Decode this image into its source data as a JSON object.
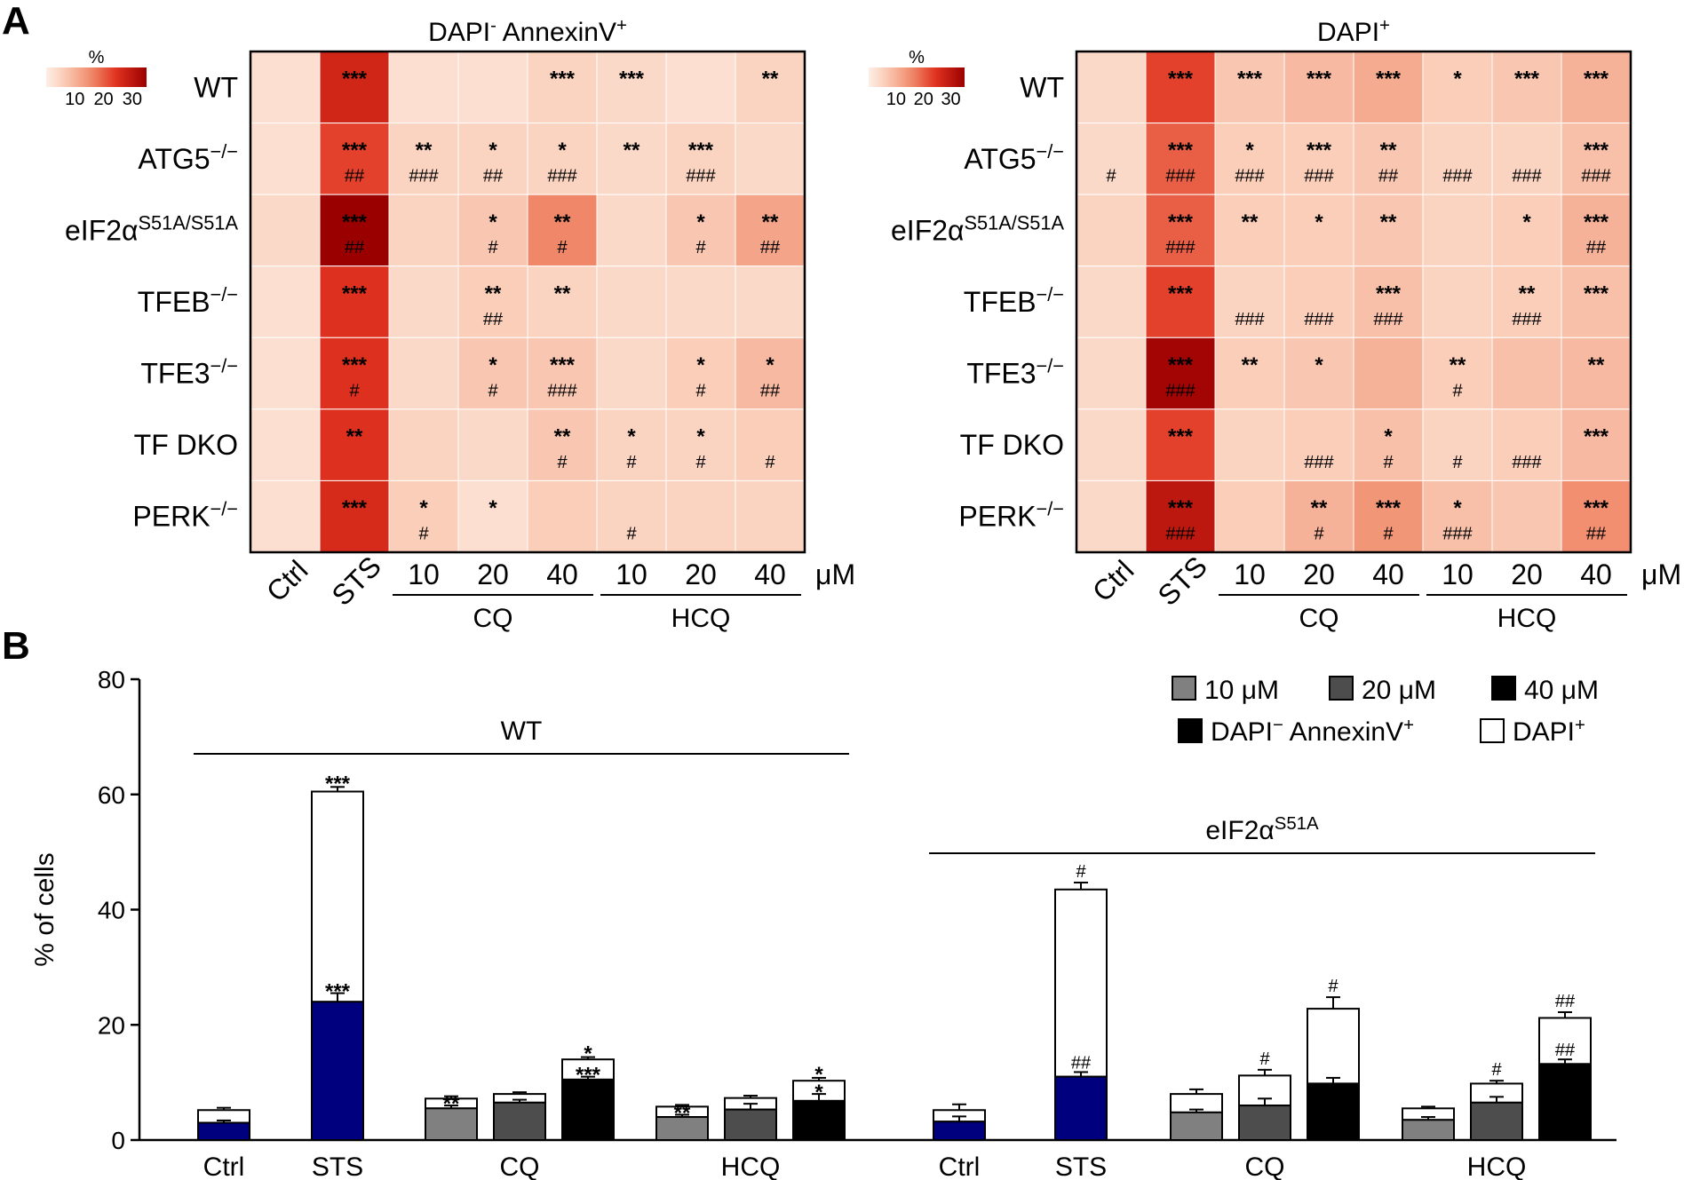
{
  "panel_labels": {
    "a": "A",
    "b": "B"
  },
  "colors": {
    "heat_low": "#fde8de",
    "heat_high": "#9b0000",
    "ctrl_bar": "#00007f",
    "dose_10": "#808080",
    "dose_20": "#4d4d4d",
    "dose_40": "#000000"
  },
  "chart_data": [
    {
      "type": "heatmap",
      "id": "annexin",
      "title_main": "DAPI",
      "title_sup1": "-",
      "title_rest": " AnnexinV",
      "title_sup2": "+",
      "colorbar": {
        "title": "%",
        "ticks": [
          "10",
          "20",
          "30"
        ],
        "range": [
          0,
          35
        ]
      },
      "rows": [
        {
          "main": "WT",
          "sup": ""
        },
        {
          "main": "ATG5",
          "sup": "−/−"
        },
        {
          "main": "eIF2α",
          "sup": "S51A/S51A"
        },
        {
          "main": "TFEB",
          "sup": "−/−"
        },
        {
          "main": "TFE3",
          "sup": "−/−"
        },
        {
          "main": "TF DKO",
          "sup": ""
        },
        {
          "main": "PERK",
          "sup": "−/−"
        }
      ],
      "columns": [
        "Ctrl",
        "STS",
        "10",
        "20",
        "40",
        "10",
        "20",
        "40"
      ],
      "groups": [
        {
          "label": "CQ",
          "from": 2,
          "to": 4
        },
        {
          "label": "HCQ",
          "from": 5,
          "to": 7
        }
      ],
      "unit": "μM",
      "values": [
        [
          3,
          27,
          3,
          3,
          5,
          4,
          3,
          5
        ],
        [
          3,
          23,
          5,
          5,
          5,
          4,
          5,
          4
        ],
        [
          4,
          35,
          5,
          7,
          16,
          4,
          7,
          12
        ],
        [
          3,
          25,
          4,
          6,
          5,
          4,
          4,
          4
        ],
        [
          3,
          25,
          4,
          7,
          7,
          4,
          6,
          9
        ],
        [
          3,
          25,
          5,
          4,
          7,
          5,
          5,
          6
        ],
        [
          3,
          26,
          6,
          3,
          6,
          5,
          5,
          5
        ]
      ],
      "stars": [
        [
          "",
          "***",
          "",
          "",
          "***",
          "***",
          "",
          "**"
        ],
        [
          "",
          "***",
          "**",
          "*",
          "*",
          "**",
          "***",
          ""
        ],
        [
          "",
          "***",
          "",
          "*",
          "**",
          "",
          "*",
          "**"
        ],
        [
          "",
          "***",
          "",
          "**",
          "**",
          "",
          "",
          ""
        ],
        [
          "",
          "***",
          "",
          "*",
          "***",
          "",
          "*",
          "*"
        ],
        [
          "",
          "**",
          "",
          "",
          "**",
          "*",
          "*",
          ""
        ],
        [
          "",
          "***",
          "*",
          "*",
          "",
          "",
          "",
          ""
        ]
      ],
      "hashes": [
        [
          "",
          "",
          "",
          "",
          "",
          "",
          "",
          ""
        ],
        [
          "",
          "##",
          "###",
          "##",
          "###",
          "",
          "###",
          ""
        ],
        [
          "",
          "##",
          "",
          "#",
          "#",
          "",
          "#",
          "##"
        ],
        [
          "",
          "",
          "",
          "##",
          "",
          "",
          "",
          ""
        ],
        [
          "",
          "#",
          "",
          "#",
          "###",
          "",
          "#",
          "##"
        ],
        [
          "",
          "",
          "",
          "",
          "#",
          "#",
          "#",
          "#"
        ],
        [
          "",
          "",
          "#",
          "",
          "",
          "#",
          "",
          ""
        ]
      ]
    },
    {
      "type": "heatmap",
      "id": "dapi",
      "title_main": "DAPI",
      "title_sup1": "",
      "title_rest": "",
      "title_sup2": "+",
      "colorbar": {
        "title": "%",
        "ticks": [
          "10",
          "20",
          "30"
        ],
        "range": [
          0,
          35
        ]
      },
      "rows": [
        {
          "main": "WT",
          "sup": ""
        },
        {
          "main": "ATG5",
          "sup": "−/−"
        },
        {
          "main": "eIF2α",
          "sup": "S51A/S51A"
        },
        {
          "main": "TFEB",
          "sup": "−/−"
        },
        {
          "main": "TFE3",
          "sup": "−/−"
        },
        {
          "main": "TF DKO",
          "sup": ""
        },
        {
          "main": "PERK",
          "sup": "−/−"
        }
      ],
      "columns": [
        "Ctrl",
        "STS",
        "10",
        "20",
        "40",
        "10",
        "20",
        "40"
      ],
      "groups": [
        {
          "label": "CQ",
          "from": 2,
          "to": 4
        },
        {
          "label": "HCQ",
          "from": 5,
          "to": 7
        }
      ],
      "unit": "μM",
      "values": [
        [
          4,
          23,
          7,
          9,
          11,
          6,
          7,
          10
        ],
        [
          4,
          20,
          6,
          6,
          7,
          5,
          5,
          8
        ],
        [
          5,
          20,
          6,
          6,
          7,
          5,
          6,
          10
        ],
        [
          4,
          23,
          5,
          6,
          8,
          5,
          6,
          8
        ],
        [
          4,
          34,
          6,
          7,
          10,
          6,
          8,
          9
        ],
        [
          4,
          23,
          5,
          6,
          8,
          5,
          6,
          9
        ],
        [
          4,
          30,
          6,
          10,
          14,
          8,
          7,
          15
        ]
      ],
      "stars": [
        [
          "",
          "***",
          "***",
          "***",
          "***",
          "*",
          "***",
          "***"
        ],
        [
          "",
          "***",
          "*",
          "***",
          "**",
          "",
          "",
          "***"
        ],
        [
          "",
          "***",
          "**",
          "*",
          "**",
          "",
          "*",
          "***"
        ],
        [
          "",
          "***",
          "",
          "",
          "***",
          "",
          "**",
          "***"
        ],
        [
          "",
          "***",
          "**",
          "*",
          "",
          "**",
          "",
          "**"
        ],
        [
          "",
          "***",
          "",
          "",
          "*",
          "",
          "",
          "***"
        ],
        [
          "",
          "***",
          "",
          "**",
          "***",
          "*",
          "",
          "***"
        ]
      ],
      "hashes": [
        [
          "",
          "",
          "",
          "",
          "",
          "",
          "",
          ""
        ],
        [
          "#",
          "###",
          "###",
          "###",
          "##",
          "###",
          "###",
          "###"
        ],
        [
          "",
          "###",
          "",
          "",
          "",
          "",
          "",
          "##"
        ],
        [
          "",
          "",
          "###",
          "###",
          "###",
          "",
          "###",
          ""
        ],
        [
          "",
          "###",
          "",
          "",
          "",
          "#",
          "",
          ""
        ],
        [
          "",
          "",
          "",
          "###",
          "#",
          "#",
          "###",
          ""
        ],
        [
          "",
          "###",
          "",
          "#",
          "#",
          "###",
          "",
          "##"
        ]
      ]
    },
    {
      "type": "bar",
      "stacked": true,
      "ylabel": "% of cells",
      "ylim": [
        0,
        80
      ],
      "yticks": [
        0,
        20,
        40,
        60,
        80
      ],
      "group_titles": [
        {
          "main": "WT",
          "sup": "",
          "from": 0,
          "to": 7
        },
        {
          "main": "eIF2α",
          "sup": "S51A",
          "from": 8,
          "to": 15
        }
      ],
      "category_labels": [
        {
          "label": "Ctrl",
          "from": 0,
          "to": 0
        },
        {
          "label": "STS",
          "from": 1,
          "to": 1
        },
        {
          "label": "CQ",
          "from": 2,
          "to": 4
        },
        {
          "label": "HCQ",
          "from": 5,
          "to": 7
        },
        {
          "label": "Ctrl",
          "from": 8,
          "to": 8
        },
        {
          "label": "STS",
          "from": 9,
          "to": 9
        },
        {
          "label": "CQ",
          "from": 10,
          "to": 12
        },
        {
          "label": "HCQ",
          "from": 13,
          "to": 15
        }
      ],
      "series": [
        {
          "name": "DAPI⁻ AnnexinV⁺"
        },
        {
          "name": "DAPI⁺"
        }
      ],
      "legend": {
        "doses": [
          "10 μM",
          "20 μM",
          "40 μM"
        ],
        "fill_main": "DAPI",
        "fill_sup1": "−",
        "fill_rest": " AnnexinV",
        "fill_sup2": "+",
        "open_main": "DAPI",
        "open_sup": "+"
      },
      "bars": [
        {
          "color": "ctrl",
          "bottom": 3,
          "total": 5.2,
          "err_bottom": 0.4,
          "err_total": 0.4,
          "ann_bottom": "",
          "ann_total": ""
        },
        {
          "color": "ctrl",
          "bottom": 24,
          "total": 60.5,
          "err_bottom": 1.5,
          "err_total": 0.8,
          "ann_bottom": "***",
          "ann_total": "***"
        },
        {
          "color": "d10",
          "bottom": 5.5,
          "total": 7.2,
          "err_bottom": 0.5,
          "err_total": 0.4,
          "ann_bottom": "**",
          "ann_total": ""
        },
        {
          "color": "d20",
          "bottom": 6.5,
          "total": 8.0,
          "err_bottom": 0.5,
          "err_total": 0.3,
          "ann_bottom": "",
          "ann_total": ""
        },
        {
          "color": "d40",
          "bottom": 10.5,
          "total": 14.0,
          "err_bottom": 0.5,
          "err_total": 0.4,
          "ann_bottom": "***",
          "ann_total": "*"
        },
        {
          "color": "d10",
          "bottom": 4.0,
          "total": 5.8,
          "err_bottom": 0.4,
          "err_total": 0.3,
          "ann_bottom": "**",
          "ann_total": ""
        },
        {
          "color": "d20",
          "bottom": 5.3,
          "total": 7.3,
          "err_bottom": 1.0,
          "err_total": 0.4,
          "ann_bottom": "",
          "ann_total": ""
        },
        {
          "color": "d40",
          "bottom": 6.8,
          "total": 10.3,
          "err_bottom": 1.2,
          "err_total": 0.5,
          "ann_bottom": "*",
          "ann_total": "*"
        },
        {
          "color": "ctrl",
          "bottom": 3.2,
          "total": 5.2,
          "err_bottom": 0.9,
          "err_total": 1.0,
          "ann_bottom": "",
          "ann_total": ""
        },
        {
          "color": "ctrl",
          "bottom": 11.0,
          "total": 43.5,
          "err_bottom": 0.8,
          "err_total": 1.2,
          "ann_bottom": "##",
          "ann_total": "#"
        },
        {
          "color": "d10",
          "bottom": 4.8,
          "total": 8.0,
          "err_bottom": 0.5,
          "err_total": 0.8,
          "ann_bottom": "",
          "ann_total": ""
        },
        {
          "color": "d20",
          "bottom": 6.0,
          "total": 11.2,
          "err_bottom": 1.2,
          "err_total": 1.0,
          "ann_bottom": "",
          "ann_total": "#"
        },
        {
          "color": "d40",
          "bottom": 9.8,
          "total": 22.8,
          "err_bottom": 1.0,
          "err_total": 2.0,
          "ann_bottom": "",
          "ann_total": "#"
        },
        {
          "color": "d10",
          "bottom": 3.5,
          "total": 5.5,
          "err_bottom": 0.5,
          "err_total": 0.3,
          "ann_bottom": "",
          "ann_total": ""
        },
        {
          "color": "d20",
          "bottom": 6.5,
          "total": 9.8,
          "err_bottom": 1.0,
          "err_total": 0.5,
          "ann_bottom": "",
          "ann_total": "#"
        },
        {
          "color": "d40",
          "bottom": 13.2,
          "total": 21.2,
          "err_bottom": 0.8,
          "err_total": 1.0,
          "ann_bottom": "##",
          "ann_total": "##"
        }
      ]
    }
  ]
}
